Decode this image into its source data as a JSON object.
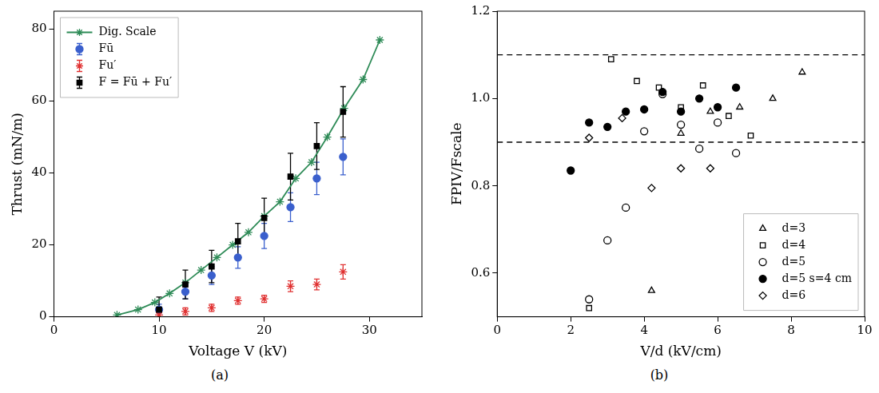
{
  "chart_data": [
    {
      "type": "line",
      "caption": "(a)",
      "xlabel": "Voltage V (kV)",
      "ylabel": "Thrust (mN/m)",
      "xlim": [
        0,
        35
      ],
      "xticks": [
        0,
        10,
        20,
        30
      ],
      "ylim": [
        0,
        85
      ],
      "yticks": [
        0,
        20,
        40,
        60,
        80
      ],
      "grid": false,
      "legend": "upper left",
      "series": [
        {
          "name": "Dig. Scale",
          "type": "line",
          "color": "#2e8b57",
          "marker": "star",
          "x": [
            6,
            8,
            9.6,
            11,
            12.5,
            14,
            15.5,
            17,
            18.5,
            20,
            21.5,
            23,
            24.5,
            26,
            27.6,
            29.4,
            31
          ],
          "values": [
            0.5,
            2,
            4,
            6.5,
            9.5,
            13,
            16.5,
            20,
            23.5,
            28,
            32,
            38.5,
            43,
            50,
            58,
            66,
            77
          ]
        },
        {
          "name": "Fū",
          "type": "scatter",
          "color": "#3a5fcd",
          "marker": "circle",
          "x": [
            10,
            12.5,
            15,
            17.5,
            20,
            22.5,
            25,
            27.5
          ],
          "values": [
            2,
            7,
            11.5,
            16.5,
            22.5,
            30.5,
            38.5,
            44.5
          ],
          "errors": [
            1.5,
            2,
            2.5,
            3,
            3.5,
            4,
            4.5,
            5
          ]
        },
        {
          "name": "Fu′",
          "type": "scatter",
          "color": "#e03030",
          "marker": "star",
          "x": [
            10,
            12.5,
            15,
            17.5,
            20,
            22.5,
            25,
            27.5
          ],
          "values": [
            0.5,
            1.5,
            2.5,
            4.5,
            5,
            8.5,
            9,
            12.5
          ],
          "errors": [
            0.5,
            1,
            1,
            1,
            1,
            1.5,
            1.5,
            2
          ]
        },
        {
          "name": "F = Fū + Fu′",
          "type": "scatter",
          "color": "#000000",
          "marker": "square",
          "x": [
            10,
            12.5,
            15,
            17.5,
            20,
            22.5,
            25,
            27.5
          ],
          "values": [
            2,
            9,
            14,
            21,
            27.5,
            39,
            47.5,
            57
          ],
          "errors": [
            3.5,
            4,
            4.5,
            5,
            5.5,
            6.5,
            6.5,
            7
          ]
        }
      ]
    },
    {
      "type": "scatter",
      "caption": "(b)",
      "xlabel": "V/d (kV/cm)",
      "ylabel": "FPIV/Fscale",
      "xlim": [
        0,
        10
      ],
      "xticks": [
        0,
        2,
        4,
        6,
        8,
        10
      ],
      "ylim": [
        0.5,
        1.2
      ],
      "yticks": [
        0.6,
        0.8,
        {
          "value": 1,
          "label": "1.0"
        },
        1.2
      ],
      "grid": false,
      "legend": "lower right",
      "hlines": [
        {
          "value": 0.9,
          "line_style": "dashed"
        },
        {
          "value": 1.1,
          "line_style": "dashed"
        }
      ],
      "series": [
        {
          "name": "d=3",
          "color": "#000000",
          "marker": "triangle-open",
          "x": [
            4.2,
            5,
            5.8,
            6.6,
            7.5,
            8.3
          ],
          "values": [
            0.56,
            0.92,
            0.97,
            0.98,
            1.0,
            1.06
          ]
        },
        {
          "name": "d=4",
          "color": "#000000",
          "marker": "square-open",
          "x": [
            2.5,
            3.1,
            3.8,
            4.4,
            5,
            5.6,
            6.3,
            6.9
          ],
          "values": [
            0.52,
            1.09,
            1.04,
            1.025,
            0.98,
            1.03,
            0.96,
            0.915
          ]
        },
        {
          "name": "d=5",
          "color": "#000000",
          "marker": "circle-open",
          "x": [
            2.5,
            3,
            3.5,
            4,
            4.5,
            5,
            5.5,
            6,
            6.5
          ],
          "values": [
            0.54,
            0.675,
            0.75,
            0.925,
            1.01,
            0.94,
            0.885,
            0.945,
            0.875
          ]
        },
        {
          "name": "d=5 s=4 cm",
          "color": "#000000",
          "marker": "circle",
          "x": [
            2,
            2.5,
            3,
            3.5,
            4,
            4.5,
            5,
            5.5,
            6,
            6.5
          ],
          "values": [
            0.835,
            0.945,
            0.935,
            0.97,
            0.975,
            1.015,
            0.97,
            1.0,
            0.98,
            1.025
          ]
        },
        {
          "name": "d=6",
          "color": "#000000",
          "marker": "diamond-open",
          "x": [
            2.5,
            3.4,
            4.2,
            5,
            5.8
          ],
          "values": [
            0.91,
            0.955,
            0.795,
            0.84,
            0.84
          ]
        }
      ]
    }
  ]
}
